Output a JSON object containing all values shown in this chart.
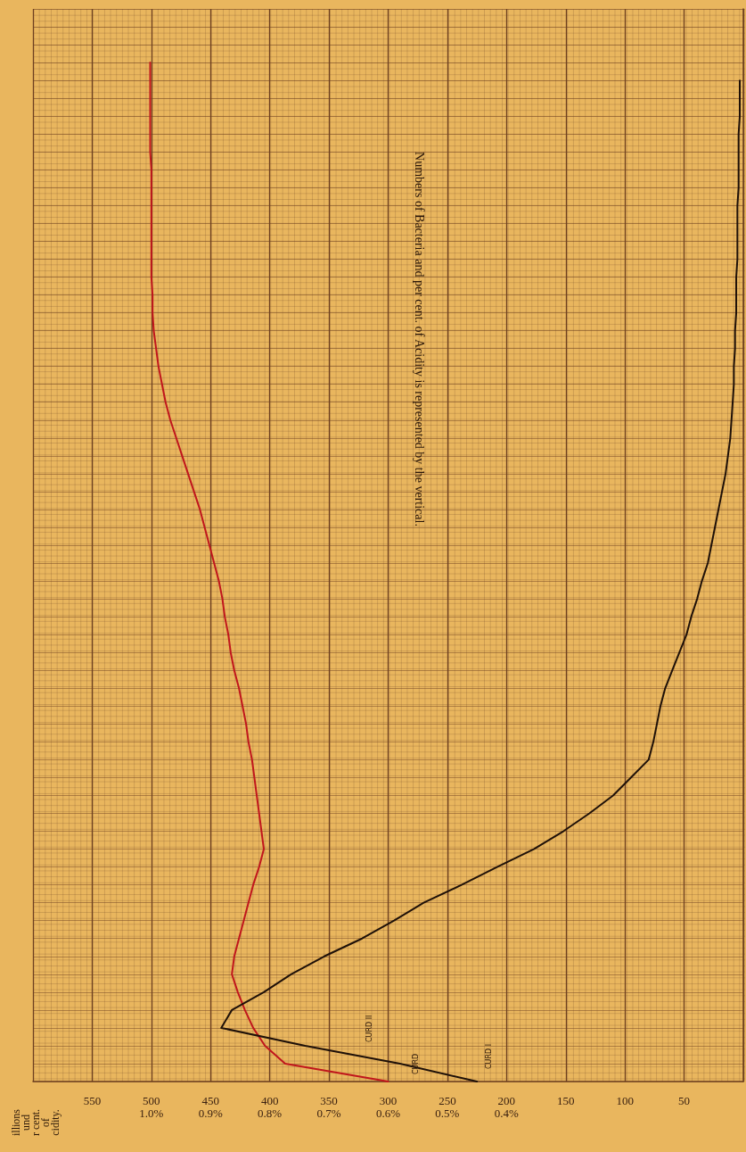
{
  "chart_data": {
    "type": "line",
    "title": "Numbers of Bacteria and per cent. of Acidity is represented by the vertical.",
    "ylabel": "illions\nund\nr cent.\nof\ncidity.",
    "categories": [
      null,
      null,
      null,
      null,
      null,
      null,
      null,
      null,
      null,
      null,
      null,
      null,
      null,
      null,
      null,
      null,
      null,
      null,
      null,
      null,
      null,
      null,
      null,
      null,
      null,
      null,
      null,
      null,
      null,
      null,
      null,
      null,
      null,
      null,
      null,
      null,
      null,
      null,
      null,
      null,
      null,
      null,
      null,
      null,
      null,
      null,
      null,
      null,
      null,
      null,
      null,
      null,
      null,
      null,
      null,
      null,
      null,
      null,
      null,
      null,
      null
    ],
    "series": [
      {
        "color": "#c0161c",
        "values": [
          null,
          null,
          null,
          501,
          501,
          501,
          501,
          501,
          501,
          500,
          500,
          500,
          500,
          500,
          500,
          500,
          499,
          499,
          498,
          496,
          494,
          491,
          488,
          484,
          479,
          474,
          469,
          464,
          459,
          455,
          451,
          447,
          443,
          440,
          438,
          435,
          433,
          430,
          426,
          423,
          420,
          418,
          415,
          413,
          411,
          409,
          407,
          405,
          409,
          414,
          418,
          422,
          426,
          430,
          432,
          427,
          421,
          414,
          404,
          387,
          300
        ]
      },
      {
        "color": "#1e1008",
        "values": [
          null,
          null,
          null,
          null,
          3,
          3,
          3,
          4,
          4,
          4,
          4,
          5,
          5,
          5,
          5,
          6,
          6,
          6,
          7,
          7,
          8,
          8,
          9,
          10,
          11,
          13,
          15,
          18,
          21,
          24,
          27,
          30,
          35,
          39,
          44,
          48,
          54,
          60,
          66,
          70,
          73,
          76,
          80,
          95,
          110,
          130,
          152,
          177,
          208,
          238,
          270,
          295,
          322,
          354,
          382,
          405,
          432,
          441,
          370,
          290,
          225
        ]
      }
    ],
    "orientation": "horizontal",
    "xlim": [
      600,
      0
    ],
    "xticks": [
      {
        "value": 50,
        "label": "50"
      },
      {
        "value": 100,
        "label": "100"
      },
      {
        "value": 150,
        "label": "150"
      },
      {
        "value": 200,
        "label": "200\n0.4%"
      },
      {
        "value": 250,
        "label": "250\n0.5%"
      },
      {
        "value": 300,
        "label": "300\n0.6%"
      },
      {
        "value": 350,
        "label": "350\n0.7%"
      },
      {
        "value": 400,
        "label": "400\n0.8%"
      },
      {
        "value": 450,
        "label": "450\n0.9%"
      },
      {
        "value": 500,
        "label": "500\n1.0%"
      },
      {
        "value": 550,
        "label": "550"
      }
    ],
    "annotations": [
      "CURD",
      "CURD I",
      "CURD II"
    ],
    "grid": true,
    "marker": "none",
    "line_style": "solid"
  }
}
